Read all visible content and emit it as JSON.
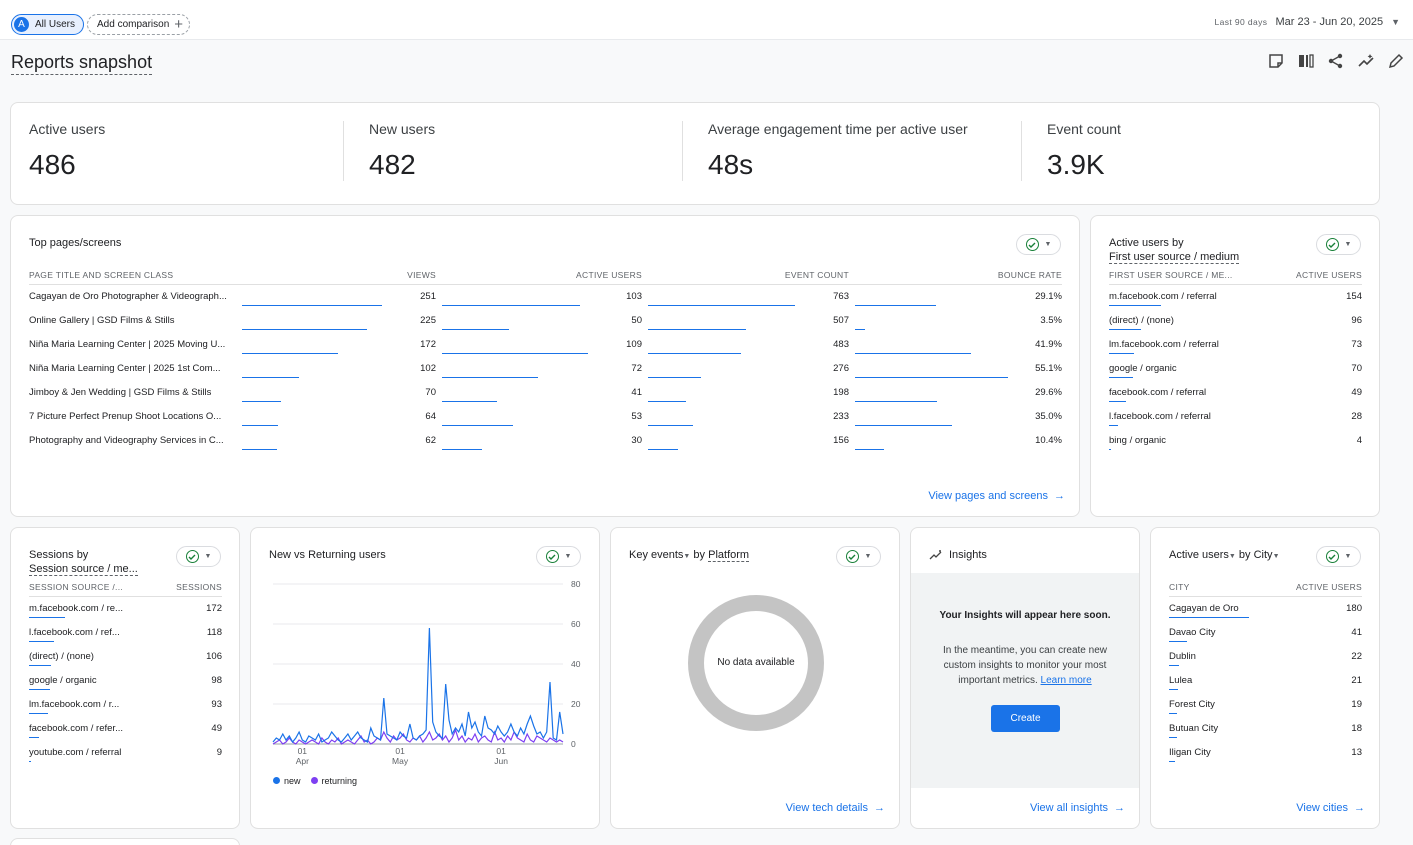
{
  "header": {
    "segment_avatar": "A",
    "segment_label": "All Users",
    "add_comparison_label": "Add comparison",
    "date_range_label": "Last 90 days",
    "date_range_value": "Mar 23 - Jun 20, 2025"
  },
  "page_title": "Reports snapshot",
  "kpis": [
    {
      "label": "Active users",
      "value": "486"
    },
    {
      "label": "New users",
      "value": "482"
    },
    {
      "label": "Average engagement time per active user",
      "value": "48s"
    },
    {
      "label": "Event count",
      "value": "3.9K"
    }
  ],
  "top_pages": {
    "title": "Top pages/screens",
    "columns": [
      "PAGE TITLE AND SCREEN CLASS",
      "VIEWS",
      "ACTIVE USERS",
      "EVENT COUNT",
      "BOUNCE RATE"
    ],
    "rows": [
      {
        "name": "Cagayan de Oro Photographer & Videograph...",
        "views": "251",
        "users": "103",
        "events": "763",
        "bounce": "29.1%"
      },
      {
        "name": "Online Gallery | GSD Films & Stills",
        "views": "225",
        "users": "50",
        "events": "507",
        "bounce": "3.5%"
      },
      {
        "name": "Niña Maria Learning Center | 2025 Moving U...",
        "views": "172",
        "users": "109",
        "events": "483",
        "bounce": "41.9%"
      },
      {
        "name": "Niña Maria Learning Center | 2025 1st Com...",
        "views": "102",
        "users": "72",
        "events": "276",
        "bounce": "55.1%"
      },
      {
        "name": "Jimboy & Jen Wedding | GSD Films & Stills",
        "views": "70",
        "users": "41",
        "events": "198",
        "bounce": "29.6%"
      },
      {
        "name": "7 Picture Perfect Prenup Shoot Locations O...",
        "views": "64",
        "users": "53",
        "events": "233",
        "bounce": "35.0%"
      },
      {
        "name": "Photography and Videography Services in C...",
        "views": "62",
        "users": "30",
        "events": "156",
        "bounce": "10.4%"
      }
    ],
    "link": "View pages and screens"
  },
  "source_medium": {
    "title_line1": "Active users by",
    "title_line2": "First user source / medium",
    "columns": [
      "FIRST USER SOURCE / ME...",
      "ACTIVE USERS"
    ],
    "rows": [
      {
        "name": "m.facebook.com / referral",
        "value": "154"
      },
      {
        "name": "(direct) / (none)",
        "value": "96"
      },
      {
        "name": "lm.facebook.com / referral",
        "value": "73"
      },
      {
        "name": "google / organic",
        "value": "70"
      },
      {
        "name": "facebook.com / referral",
        "value": "49"
      },
      {
        "name": "l.facebook.com / referral",
        "value": "28"
      },
      {
        "name": "bing / organic",
        "value": "4"
      }
    ]
  },
  "sessions": {
    "title_line1": "Sessions by",
    "title_line2": "Session source / me...",
    "columns": [
      "SESSION SOURCE /...",
      "SESSIONS"
    ],
    "rows": [
      {
        "name": "m.facebook.com / re...",
        "value": "172"
      },
      {
        "name": "l.facebook.com / ref...",
        "value": "118"
      },
      {
        "name": "(direct) / (none)",
        "value": "106"
      },
      {
        "name": "google / organic",
        "value": "98"
      },
      {
        "name": "lm.facebook.com / r...",
        "value": "93"
      },
      {
        "name": "facebook.com / refer...",
        "value": "49"
      },
      {
        "name": "youtube.com / referral",
        "value": "9"
      }
    ]
  },
  "new_returning": {
    "title": "New vs Returning users",
    "y_ticks": [
      "80",
      "60",
      "40",
      "20",
      "0"
    ],
    "x_ticks": [
      {
        "day": "01",
        "month": "Apr"
      },
      {
        "day": "01",
        "month": "May"
      },
      {
        "day": "01",
        "month": "Jun"
      }
    ],
    "legend_new": "new",
    "legend_returning": "returning"
  },
  "chart_data": {
    "type": "line",
    "title": "New vs Returning users",
    "ylim": [
      0,
      80
    ],
    "x_start": "Mar 23, 2025",
    "x_end": "Jun 20, 2025",
    "series": [
      {
        "name": "new",
        "color": "#1a73e8",
        "values": [
          1,
          3,
          2,
          5,
          2,
          4,
          1,
          3,
          6,
          2,
          1,
          4,
          3,
          2,
          5,
          1,
          2,
          3,
          6,
          4,
          2,
          1,
          3,
          5,
          2,
          4,
          6,
          3,
          2,
          1,
          8,
          4,
          3,
          2,
          23,
          5,
          4,
          3,
          2,
          6,
          4,
          3,
          10,
          3,
          2,
          4,
          5,
          7,
          58,
          11,
          6,
          4,
          3,
          30,
          12,
          5,
          8,
          6,
          10,
          4,
          16,
          8,
          11,
          6,
          4,
          14,
          8,
          7,
          5,
          9,
          6,
          4,
          6,
          10,
          6,
          4,
          8,
          5,
          10,
          14,
          9,
          5,
          6,
          3,
          6,
          31,
          3,
          2,
          16,
          5
        ]
      },
      {
        "name": "returning",
        "color": "#7e3ff2",
        "values": [
          0,
          1,
          2,
          0,
          1,
          3,
          1,
          0,
          2,
          1,
          0,
          1,
          2,
          1,
          0,
          3,
          1,
          0,
          2,
          1,
          3,
          0,
          1,
          2,
          1,
          0,
          2,
          4,
          1,
          2,
          0,
          1,
          3,
          2,
          6,
          3,
          1,
          4,
          2,
          3,
          5,
          2,
          1,
          3,
          2,
          4,
          1,
          3,
          6,
          2,
          3,
          5,
          2,
          4,
          1,
          3,
          7,
          2,
          4,
          1,
          3,
          2,
          5,
          1,
          3,
          4,
          2,
          1,
          6,
          2,
          3,
          1,
          4,
          2,
          6,
          3,
          2,
          1,
          5,
          2,
          1,
          4,
          3,
          2,
          1,
          3,
          2,
          1,
          2,
          1
        ]
      }
    ]
  },
  "key_events": {
    "title_a": "Key events",
    "title_b": "by",
    "title_c": "Platform",
    "no_data": "No data available",
    "link": "View tech details"
  },
  "insights": {
    "title": "Insights",
    "heading": "Your Insights will appear here soon.",
    "body": "In the meantime, you can create new custom insights to monitor your most important metrics.",
    "learn_more": "Learn more",
    "create": "Create",
    "link": "View all insights"
  },
  "cities": {
    "title_a": "Active users",
    "title_b": "by",
    "title_c": "City",
    "columns": [
      "CITY",
      "ACTIVE USERS"
    ],
    "rows": [
      {
        "name": "Cagayan de Oro",
        "value": "180"
      },
      {
        "name": "Davao City",
        "value": "41"
      },
      {
        "name": "Dublin",
        "value": "22"
      },
      {
        "name": "Lulea",
        "value": "21"
      },
      {
        "name": "Forest City",
        "value": "19"
      },
      {
        "name": "Butuan City",
        "value": "18"
      },
      {
        "name": "Iligan City",
        "value": "13"
      }
    ],
    "link": "View cities"
  }
}
